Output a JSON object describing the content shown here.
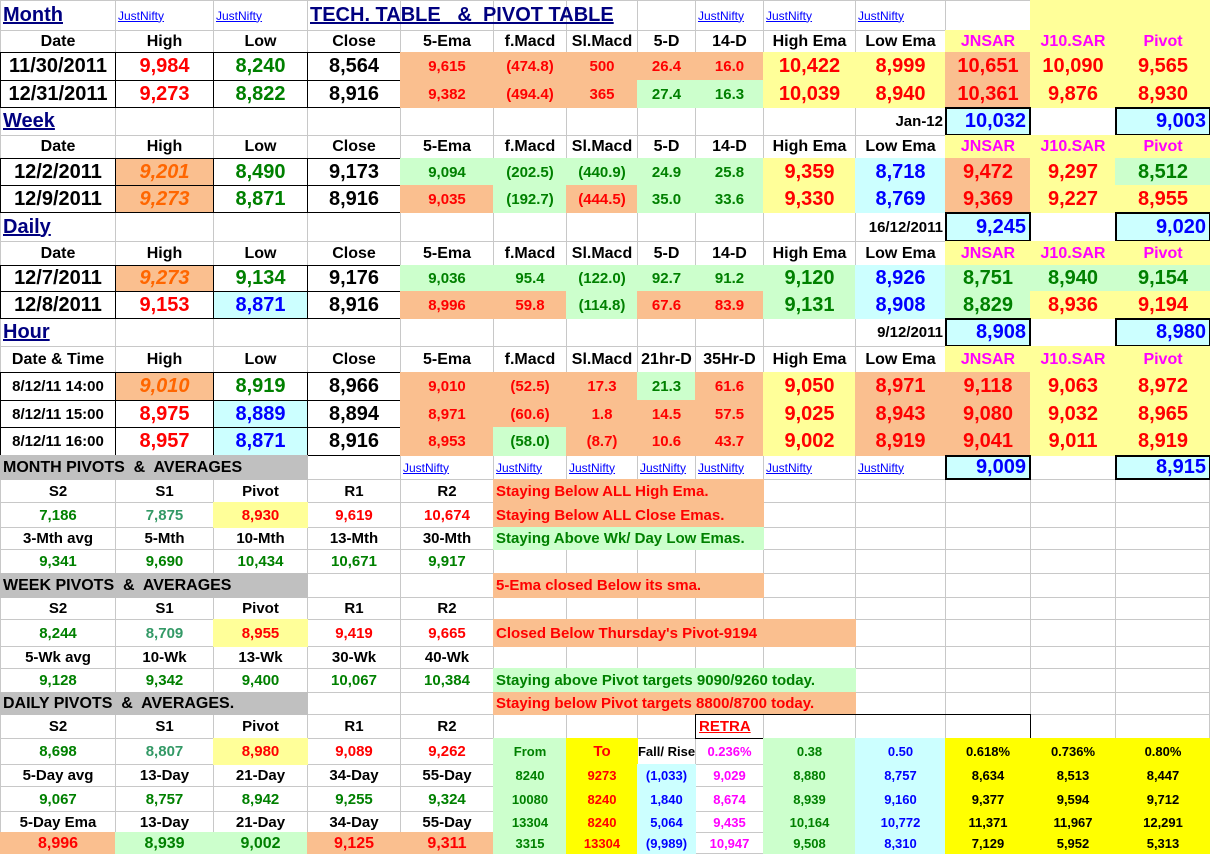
{
  "rows": [
    [
      "Month",
      "JustNifty",
      "JustNifty",
      "TECH. TABLE   &  PIVOT TABLE",
      "JustNifty",
      "JustNifty",
      "JustNifty"
    ],
    [
      "Date",
      "High",
      "Low",
      "Close",
      "5-Ema",
      "f.Macd",
      "Sl.Macd",
      "5-D",
      "14-D",
      "High Ema",
      "Low Ema",
      "JNSAR",
      "J10.SAR",
      "Pivot"
    ],
    [
      "11/30/2011",
      "9,984",
      "8,240",
      "8,564",
      "9,615",
      "(474.8)",
      "500",
      "26.4",
      "16.0",
      "10,422",
      "8,999",
      "10,651",
      "10,090",
      "9,565"
    ],
    [
      "12/31/2011",
      "9,273",
      "8,822",
      "8,916",
      "9,382",
      "(494.4)",
      "365",
      "27.4",
      "16.3",
      "10,039",
      "8,940",
      "10,361",
      "9,876",
      "8,930"
    ],
    [
      "Week",
      "Jan-12",
      "10,032",
      "9,003"
    ],
    [
      "Date",
      "High",
      "Low",
      "Close",
      "5-Ema",
      "f.Macd",
      "Sl.Macd",
      "5-D",
      "14-D",
      "High Ema",
      "Low Ema",
      "JNSAR",
      "J10.SAR",
      "Pivot"
    ],
    [
      "12/2/2011",
      "9,201",
      "8,490",
      "9,173",
      "9,094",
      "(202.5)",
      "(440.9)",
      "24.9",
      "25.8",
      "9,359",
      "8,718",
      "9,472",
      "9,297",
      "8,512"
    ],
    [
      "12/9/2011",
      "9,273",
      "8,871",
      "8,916",
      "9,035",
      "(192.7)",
      "(444.5)",
      "35.0",
      "33.6",
      "9,330",
      "8,769",
      "9,369",
      "9,227",
      "8,955"
    ],
    [
      "Daily",
      "16/12/2011",
      "9,245",
      "9,020"
    ],
    [
      "Date",
      "High",
      "Low",
      "Close",
      "5-Ema",
      "f.Macd",
      "Sl.Macd",
      "5-D",
      "14-D",
      "High Ema",
      "Low Ema",
      "JNSAR",
      "J10.SAR",
      "Pivot"
    ],
    [
      "12/7/2011",
      "9,273",
      "9,134",
      "9,176",
      "9,036",
      "95.4",
      "(122.0)",
      "92.7",
      "91.2",
      "9,120",
      "8,926",
      "8,751",
      "8,940",
      "9,154"
    ],
    [
      "12/8/2011",
      "9,153",
      "8,871",
      "8,916",
      "8,996",
      "59.8",
      "(114.8)",
      "67.6",
      "83.9",
      "9,131",
      "8,908",
      "8,829",
      "8,936",
      "9,194"
    ],
    [
      "Hour",
      "9/12/2011",
      "8,908",
      "8,980"
    ],
    [
      "Date & Time",
      "High",
      "Low",
      "Close",
      "5-Ema",
      "f.Macd",
      "Sl.Macd",
      "21hr-D",
      "35Hr-D",
      "High Ema",
      "Low Ema",
      "JNSAR",
      "J10.SAR",
      "Pivot"
    ],
    [
      "8/12/11 14:00",
      "9,010",
      "8,919",
      "8,966",
      "9,010",
      "(52.5)",
      "17.3",
      "21.3",
      "61.6",
      "9,050",
      "8,971",
      "9,118",
      "9,063",
      "8,972"
    ],
    [
      "8/12/11 15:00",
      "8,975",
      "8,889",
      "8,894",
      "8,971",
      "(60.6)",
      "1.8",
      "14.5",
      "57.5",
      "9,025",
      "8,943",
      "9,080",
      "9,032",
      "8,965"
    ],
    [
      "8/12/11 16:00",
      "8,957",
      "8,871",
      "8,916",
      "8,953",
      "(58.0)",
      "(8.7)",
      "10.6",
      "43.7",
      "9,002",
      "8,919",
      "9,041",
      "9,011",
      "8,919"
    ],
    [
      "MONTH PIVOTS  &  AVERAGES",
      "JustNifty",
      "JustNifty",
      "JustNifty",
      "JustNifty",
      "JustNifty",
      "JustNifty",
      "JustNifty",
      "9,009",
      "8,915"
    ],
    [
      "S2",
      "S1",
      "Pivot",
      "R1",
      "R2",
      "Staying Below ALL High Ema."
    ],
    [
      "7,186",
      "7,875",
      "8,930",
      "9,619",
      "10,674",
      "Staying Below ALL Close Emas."
    ],
    [
      "3-Mth avg",
      "5-Mth",
      "10-Mth",
      "13-Mth",
      "30-Mth",
      "Staying Above Wk/ Day Low Emas."
    ],
    [
      "9,341",
      "9,690",
      "10,434",
      "10,671",
      "9,917"
    ],
    [
      "WEEK PIVOTS  &  AVERAGES",
      "5-Ema closed Below its sma."
    ],
    [
      "S2",
      "S1",
      "Pivot",
      "R1",
      "R2"
    ],
    [
      "8,244",
      "8,709",
      "8,955",
      "9,419",
      "9,665",
      "Closed Below Thursday's Pivot-9194"
    ],
    [
      "5-Wk avg",
      "10-Wk",
      "13-Wk",
      "30-Wk",
      "40-Wk"
    ],
    [
      "9,128",
      "9,342",
      "9,400",
      "10,067",
      "10,384",
      "Staying above Pivot targets 9090/9260 today."
    ],
    [
      "DAILY PIVOTS  &  AVERAGES.",
      "Staying below Pivot targets 8800/8700 today."
    ],
    [
      "S2",
      "S1",
      "Pivot",
      "R1",
      "R2",
      "RETRA"
    ],
    [
      "8,698",
      "8,807",
      "8,980",
      "9,089",
      "9,262",
      "From",
      "To",
      "Fall/ Rise",
      "0.236%",
      "0.38",
      "0.50",
      "0.618%",
      "0.736%",
      "0.80%"
    ],
    [
      "5-Day avg",
      "13-Day",
      "21-Day",
      "34-Day",
      "55-Day",
      "8240",
      "9273",
      "(1,033)",
      "9,029",
      "8,880",
      "8,757",
      "8,634",
      "8,513",
      "8,447"
    ],
    [
      "9,067",
      "8,757",
      "8,942",
      "9,255",
      "9,324",
      "10080",
      "8240",
      "1,840",
      "8,674",
      "8,939",
      "9,160",
      "9,377",
      "9,594",
      "9,712"
    ],
    [
      "5-Day Ema",
      "13-Day",
      "21-Day",
      "34-Day",
      "55-Day",
      "13304",
      "8240",
      "5,064",
      "9,435",
      "10,164",
      "10,772",
      "11,371",
      "11,967",
      "12,291"
    ],
    [
      "8,996",
      "8,939",
      "9,002",
      "9,125",
      "9,311",
      "3315",
      "13304",
      "(9,989)",
      "10,947",
      "9,508",
      "8,310",
      "7,129",
      "5,952",
      "5,313"
    ]
  ]
}
